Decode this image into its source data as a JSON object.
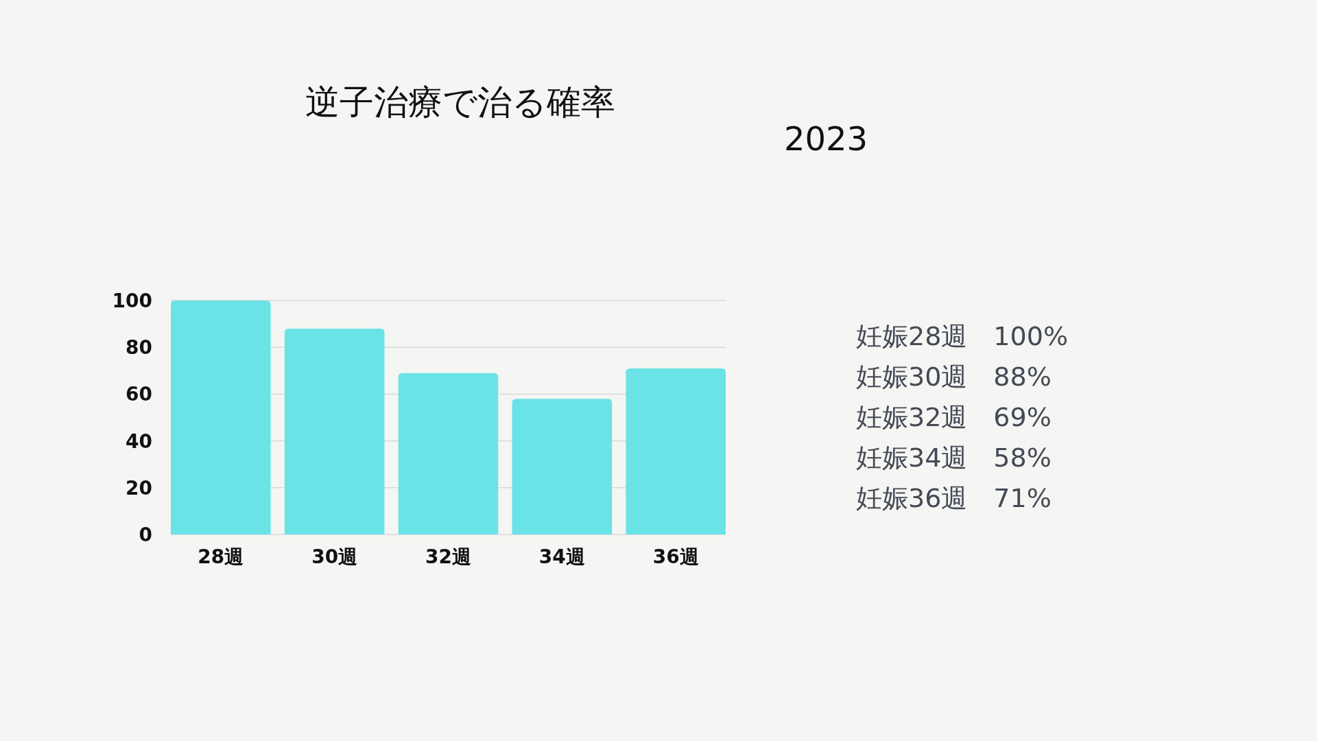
{
  "chart_data": {
    "type": "bar",
    "title": "逆子治療で治る確率",
    "categories": [
      "28週",
      "30週",
      "32週",
      "34週",
      "36週"
    ],
    "values": [
      100,
      88,
      69,
      58,
      71
    ],
    "color": "#6ae3e7",
    "ylim": [
      0,
      100
    ],
    "yticks": [
      0,
      20,
      40,
      60,
      80,
      100
    ],
    "grid": "y",
    "annotations": [
      "2023",
      "妊娠28週　100%",
      "妊娠30週　88%",
      "妊娠32週　69%",
      "妊娠34週　58%",
      "妊娠36週　71%"
    ]
  }
}
